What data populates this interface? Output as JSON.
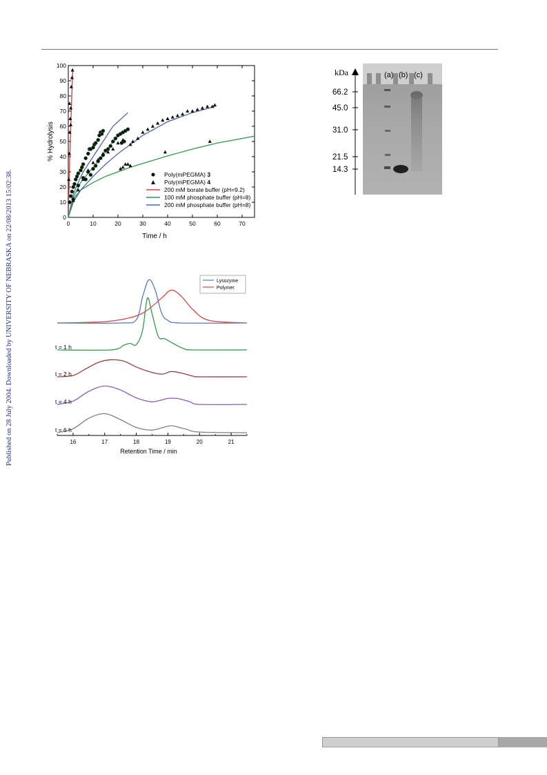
{
  "side_note": "Published on 28 July 2004. Downloaded by UNIVERSITY OF NEBRASKA on 22/08/2013 15:02:38.",
  "chart_data": [
    {
      "type": "scatter",
      "title": "",
      "xlabel": "Time / h",
      "ylabel": "% Hydrolysis",
      "xlim": [
        0,
        75
      ],
      "ylim": [
        0,
        100
      ],
      "xticks": [
        0,
        10,
        20,
        30,
        40,
        50,
        60,
        70
      ],
      "yticks": [
        0,
        10,
        20,
        30,
        40,
        50,
        60,
        70,
        80,
        90,
        100
      ],
      "legend_position": "bottom-right",
      "legend": [
        {
          "label": "Poly(mPEGMA) ",
          "num": "3",
          "kind": "circle"
        },
        {
          "label": "Poly(mPEGMA) ",
          "num": "4",
          "kind": "triangle"
        },
        {
          "label": "200 mM borate buffer (pH=9.2)",
          "kind": "line",
          "color": "#d83a32"
        },
        {
          "label": "100 mM phosphate buffer (pH=8)",
          "kind": "line",
          "color": "#2f9a4a"
        },
        {
          "label": "200 mM phosphate buffer (pH=8)",
          "kind": "line",
          "color": "#4f64b2"
        }
      ],
      "fits": [
        {
          "color": "#d83a32",
          "points": [
            [
              0,
              0
            ],
            [
              0.3,
              20
            ],
            [
              0.6,
              40
            ],
            [
              1.0,
              60
            ],
            [
              1.4,
              80
            ],
            [
              1.8,
              97
            ]
          ]
        },
        {
          "color": "#2f9a4a",
          "points": [
            [
              0,
              0
            ],
            [
              2,
              12
            ],
            [
              5,
              18
            ],
            [
              10,
              23
            ],
            [
              15,
              27
            ],
            [
              20,
              30
            ],
            [
              25,
              33
            ],
            [
              30,
              35.5
            ],
            [
              40,
              40.5
            ],
            [
              50,
              45
            ],
            [
              60,
              49
            ],
            [
              75,
              53.5
            ]
          ]
        },
        {
          "color": "#4f64b2",
          "points": [
            [
              0,
              0
            ],
            [
              2,
              15
            ],
            [
              4,
              23
            ],
            [
              6,
              30
            ],
            [
              10,
              40
            ],
            [
              14,
              50
            ],
            [
              18,
              60
            ],
            [
              24,
              69
            ]
          ]
        },
        {
          "color": "#4f64b2",
          "points": [
            [
              0,
              0
            ],
            [
              2,
              10
            ],
            [
              5,
              18
            ],
            [
              10,
              27
            ],
            [
              15,
              35
            ],
            [
              20,
              42
            ],
            [
              25,
              48
            ],
            [
              30,
              54
            ],
            [
              40,
              63
            ],
            [
              50,
              69
            ],
            [
              59,
              73
            ]
          ]
        },
        {
          "color": "#2f9a4a",
          "points": [
            [
              0,
              0
            ],
            [
              2,
              13
            ],
            [
              5,
              23
            ],
            [
              10,
              33
            ],
            [
              14,
              41
            ],
            [
              18,
              50
            ],
            [
              22,
              57
            ],
            [
              24,
              58
            ]
          ]
        }
      ],
      "circles": [
        [
          0.5,
          10
        ],
        [
          1,
          14
        ],
        [
          1.5,
          17
        ],
        [
          2,
          20
        ],
        [
          2.5,
          22
        ],
        [
          3,
          25
        ],
        [
          3.5,
          27
        ],
        [
          4,
          29
        ],
        [
          5,
          31
        ],
        [
          5.5,
          33
        ],
        [
          6,
          35
        ],
        [
          7,
          39
        ],
        [
          8,
          42
        ],
        [
          8.5,
          45
        ],
        [
          9,
          45
        ],
        [
          10,
          46
        ],
        [
          10.5,
          48
        ],
        [
          11,
          49
        ],
        [
          12,
          51
        ],
        [
          12.5,
          54
        ],
        [
          13,
          56
        ],
        [
          13.5,
          55
        ],
        [
          14,
          57
        ],
        [
          2,
          12
        ],
        [
          4,
          21
        ],
        [
          6,
          26
        ],
        [
          7,
          25
        ],
        [
          8,
          30
        ],
        [
          9,
          28
        ],
        [
          10,
          32
        ],
        [
          11,
          34
        ],
        [
          12,
          37
        ],
        [
          13,
          39
        ],
        [
          14,
          41
        ],
        [
          15,
          44
        ],
        [
          16,
          45
        ],
        [
          17,
          47
        ],
        [
          18,
          50
        ],
        [
          19,
          52
        ],
        [
          20,
          54
        ],
        [
          21,
          55
        ],
        [
          22,
          56
        ],
        [
          23,
          57
        ],
        [
          24,
          58
        ],
        [
          22.5,
          50
        ],
        [
          21.5,
          49
        ]
      ],
      "triangles": [
        [
          0.2,
          25
        ],
        [
          0.4,
          42
        ],
        [
          0.6,
          56
        ],
        [
          0.8,
          65
        ],
        [
          1.0,
          72
        ],
        [
          1.2,
          86
        ],
        [
          1.5,
          92
        ],
        [
          1.7,
          97
        ],
        [
          0.5,
          75
        ],
        [
          1.0,
          61
        ],
        [
          2,
          11
        ],
        [
          4,
          18
        ],
        [
          6,
          25
        ],
        [
          8,
          31
        ],
        [
          10,
          36
        ],
        [
          12,
          38
        ],
        [
          14,
          42
        ],
        [
          16,
          43
        ],
        [
          18,
          45
        ],
        [
          20,
          49
        ],
        [
          22,
          51
        ],
        [
          25,
          48
        ],
        [
          26,
          50
        ],
        [
          28,
          52
        ],
        [
          30,
          56
        ],
        [
          32,
          58
        ],
        [
          34,
          60
        ],
        [
          36,
          62
        ],
        [
          38,
          64
        ],
        [
          40,
          65
        ],
        [
          42,
          66
        ],
        [
          44,
          67
        ],
        [
          46,
          68
        ],
        [
          48,
          70
        ],
        [
          50,
          70
        ],
        [
          52,
          71
        ],
        [
          54,
          72
        ],
        [
          56,
          73
        ],
        [
          58,
          73
        ],
        [
          59,
          74
        ],
        [
          21,
          32
        ],
        [
          22,
          33
        ],
        [
          23,
          35
        ],
        [
          24,
          35
        ],
        [
          25,
          34
        ],
        [
          39,
          43
        ],
        [
          57,
          50
        ]
      ]
    },
    {
      "type": "line",
      "title": "",
      "xlabel": "Retention Time / min",
      "xlim": [
        15.5,
        21.5
      ],
      "xticks": [
        16,
        17,
        18,
        19,
        20,
        21
      ],
      "legend_position": "top-right",
      "series": [
        {
          "name": "Lysozyme",
          "color": "#5a76c8",
          "traces": [
            "top"
          ]
        },
        {
          "name": "Polymer",
          "color": "#e0433f",
          "traces": [
            "top"
          ]
        },
        {
          "name": "t = 1 h",
          "color": "#2f9a4a"
        },
        {
          "name": "t = 2 h",
          "color": "#9c3a3a"
        },
        {
          "name": "t = 4 h",
          "color": "#8a5cb8"
        },
        {
          "name": "t = 6 h",
          "color": "#808080"
        }
      ],
      "traces": {
        "lysozyme": [
          [
            15.5,
            0
          ],
          [
            17.5,
            0
          ],
          [
            18.0,
            5
          ],
          [
            18.2,
            40
          ],
          [
            18.4,
            66
          ],
          [
            18.6,
            50
          ],
          [
            18.8,
            15
          ],
          [
            19.0,
            4
          ],
          [
            19.4,
            0
          ],
          [
            21.5,
            0
          ]
        ],
        "polymer": [
          [
            15.5,
            0
          ],
          [
            17.0,
            2
          ],
          [
            17.8,
            8
          ],
          [
            18.3,
            18
          ],
          [
            18.8,
            38
          ],
          [
            19.1,
            50
          ],
          [
            19.4,
            42
          ],
          [
            19.8,
            20
          ],
          [
            20.3,
            4
          ],
          [
            21.5,
            0
          ]
        ],
        "t1": [
          [
            15.5,
            0
          ],
          [
            17.2,
            0
          ],
          [
            17.6,
            7
          ],
          [
            17.8,
            10
          ],
          [
            18.0,
            8
          ],
          [
            18.2,
            30
          ],
          [
            18.35,
            79
          ],
          [
            18.5,
            55
          ],
          [
            18.7,
            20
          ],
          [
            18.9,
            17
          ],
          [
            19.2,
            9
          ],
          [
            19.5,
            2
          ],
          [
            19.8,
            0
          ],
          [
            21.5,
            0
          ]
        ],
        "t2": [
          [
            15.5,
            0
          ],
          [
            16.0,
            2
          ],
          [
            16.4,
            12
          ],
          [
            16.8,
            22
          ],
          [
            17.2,
            26
          ],
          [
            17.6,
            24
          ],
          [
            18.0,
            15
          ],
          [
            18.4,
            8
          ],
          [
            18.8,
            4
          ],
          [
            19.1,
            8
          ],
          [
            19.4,
            6
          ],
          [
            19.8,
            1
          ],
          [
            20.0,
            0
          ],
          [
            21.5,
            0
          ]
        ],
        "t4": [
          [
            15.5,
            0
          ],
          [
            16.0,
            5
          ],
          [
            16.5,
            20
          ],
          [
            17.0,
            28
          ],
          [
            17.5,
            22
          ],
          [
            18.0,
            10
          ],
          [
            18.5,
            4
          ],
          [
            19.0,
            9
          ],
          [
            19.3,
            9
          ],
          [
            19.7,
            4
          ],
          [
            20.0,
            0
          ],
          [
            21.5,
            0
          ]
        ],
        "t6": [
          [
            15.5,
            0
          ],
          [
            16.0,
            6
          ],
          [
            16.5,
            22
          ],
          [
            17.0,
            29
          ],
          [
            17.5,
            20
          ],
          [
            18.0,
            8
          ],
          [
            18.5,
            4
          ],
          [
            19.0,
            10
          ],
          [
            19.2,
            10
          ],
          [
            19.6,
            5
          ],
          [
            20.0,
            1
          ],
          [
            21.5,
            0
          ]
        ]
      }
    }
  ],
  "gel": {
    "unit_label": "kDa",
    "lanes": [
      "(a)",
      "(b)",
      "(c)"
    ],
    "markers": [
      "66.2",
      "45.0",
      "31.0",
      "21.5",
      "14.3"
    ]
  }
}
